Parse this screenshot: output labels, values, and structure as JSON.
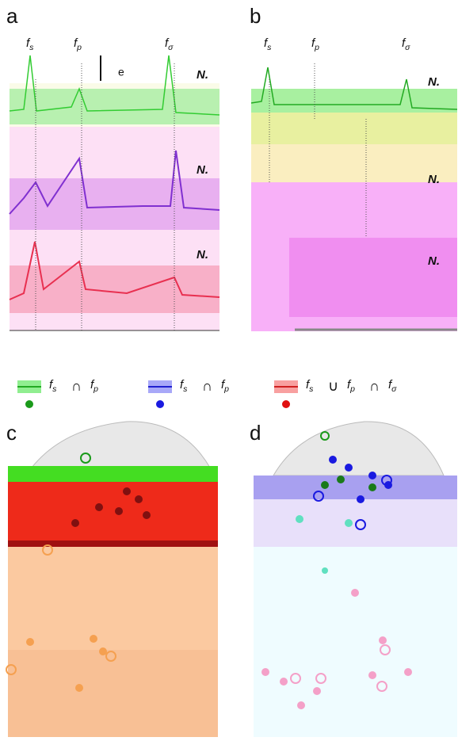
{
  "panels": [
    {
      "label": "a",
      "peaks": [
        {
          "base": "f",
          "sub": "s"
        },
        {
          "base": "f",
          "sub": "p"
        },
        {
          "base": "f",
          "sub": "σ"
        }
      ],
      "rows": [
        "N.",
        "N.",
        "N."
      ],
      "scale": "e"
    },
    {
      "label": "b",
      "peaks": [
        {
          "base": "f",
          "sub": "s"
        },
        {
          "base": "f",
          "sub": "p"
        },
        {
          "base": "f",
          "sub": "σ"
        }
      ],
      "rows": [
        "N.",
        "N.",
        "N."
      ]
    },
    {
      "label": "c"
    },
    {
      "label": "d"
    }
  ],
  "legend": [
    {
      "terms": [
        {
          "base": "f",
          "sub": "s"
        },
        {
          "op": "∩"
        },
        {
          "base": "f",
          "sub": "p"
        }
      ]
    },
    {
      "terms": [
        {
          "base": "f",
          "sub": "s"
        },
        {
          "op": "∩"
        },
        {
          "base": "f",
          "sub": "p"
        }
      ]
    },
    {
      "terms": [
        {
          "base": "f",
          "sub": "s"
        },
        {
          "op": "∪"
        },
        {
          "base": "f",
          "sub": "p"
        },
        {
          "op": "∩"
        },
        {
          "base": "f",
          "sub": "σ"
        }
      ]
    }
  ]
}
